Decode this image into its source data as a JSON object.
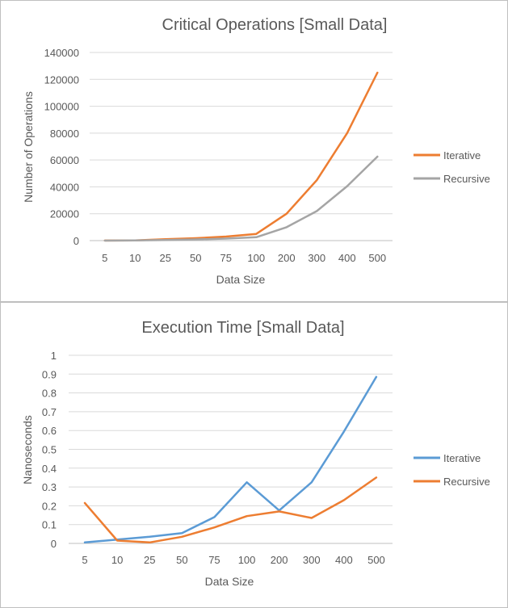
{
  "chart_data": [
    {
      "type": "line",
      "title": "Critical Operations [Small Data]",
      "xlabel": "Data Size",
      "ylabel": "Number of Operations",
      "categories": [
        "5",
        "10",
        "25",
        "50",
        "75",
        "100",
        "200",
        "300",
        "400",
        "500"
      ],
      "ylim": [
        0,
        140000
      ],
      "yticks": [
        "0",
        "20000",
        "40000",
        "60000",
        "80000",
        "100000",
        "120000",
        "140000"
      ],
      "grid": true,
      "legend_position": "right",
      "series": [
        {
          "name": "Iterative",
          "color": "#ed7d31",
          "values": [
            50,
            200,
            1000,
            1800,
            3000,
            5000,
            20000,
            45000,
            80000,
            125000
          ]
        },
        {
          "name": "Recursive",
          "color": "#a5a5a5",
          "values": [
            25,
            100,
            500,
            900,
            1500,
            2500,
            10000,
            22000,
            40500,
            62500
          ]
        }
      ]
    },
    {
      "type": "line",
      "title": "Execution Time [Small Data]",
      "xlabel": "Data Size",
      "ylabel": "Nanoseconds",
      "categories": [
        "5",
        "10",
        "25",
        "50",
        "75",
        "100",
        "200",
        "300",
        "400",
        "500"
      ],
      "ylim": [
        0,
        1
      ],
      "yticks": [
        "0",
        "0.1",
        "0.2",
        "0.3",
        "0.4",
        "0.5",
        "0.6",
        "0.7",
        "0.8",
        "0.9",
        "1"
      ],
      "grid": true,
      "legend_position": "right",
      "series": [
        {
          "name": "Iterative",
          "color": "#5b9bd5",
          "values": [
            0.005,
            0.02,
            0.035,
            0.055,
            0.14,
            0.325,
            0.175,
            0.325,
            0.595,
            0.885
          ]
        },
        {
          "name": "Recursive",
          "color": "#ed7d31",
          "values": [
            0.215,
            0.015,
            0.005,
            0.035,
            0.085,
            0.145,
            0.17,
            0.135,
            0.23,
            0.35
          ]
        }
      ]
    }
  ]
}
